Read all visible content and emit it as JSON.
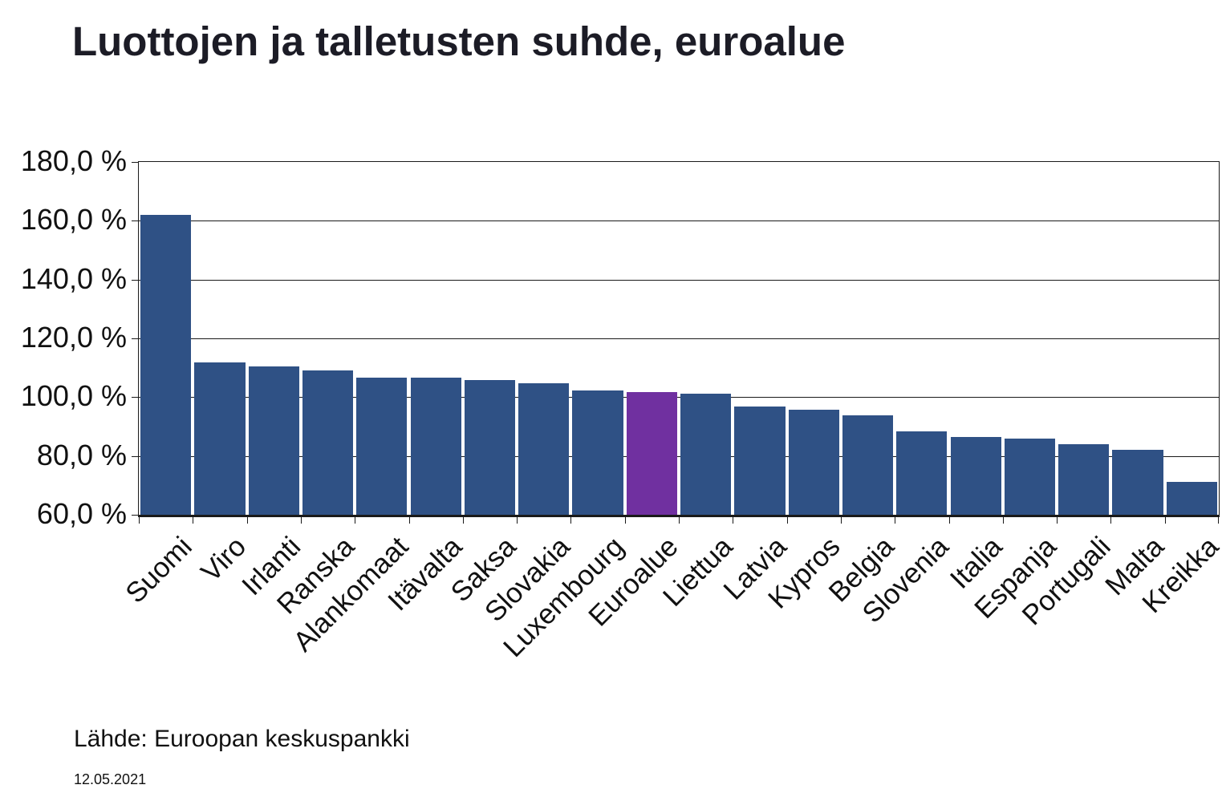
{
  "page": {
    "title": "Luottojen ja talletusten suhde, euroalue",
    "source": "Lähde: Euroopan keskuspankki",
    "date": "12.05.2021"
  },
  "chart_data": {
    "type": "bar",
    "title": "Luottojen ja talletusten suhde, euroalue",
    "categories": [
      "Suomi",
      "Viro",
      "Irlanti",
      "Ranska",
      "Alankomaat",
      "Itävalta",
      "Saksa",
      "Slovakia",
      "Luxembourg",
      "Euroalue",
      "Liettua",
      "Latvia",
      "Kypros",
      "Belgia",
      "Slovenia",
      "Italia",
      "Espanja",
      "Portugali",
      "Malta",
      "Kreikka"
    ],
    "values": [
      162.1,
      111.9,
      110.5,
      109.1,
      106.7,
      106.7,
      105.9,
      104.8,
      102.4,
      101.8,
      101.1,
      96.9,
      95.7,
      93.7,
      88.4,
      86.5,
      85.9,
      84.1,
      82.1,
      71.3
    ],
    "unit": "%",
    "highlight_category": "Euroalue",
    "bar_color": "#2F5185",
    "highlight_color": "#7030A0",
    "ylim": [
      60,
      180
    ],
    "ytick_step": 20,
    "ytick_labels": [
      "180,0 %",
      "160,0 %",
      "140,0 %",
      "120,0 %",
      "100,0 %",
      "80,0 %",
      "60,0 %"
    ],
    "grid": true,
    "legend": false,
    "xlabel": "",
    "ylabel": ""
  }
}
